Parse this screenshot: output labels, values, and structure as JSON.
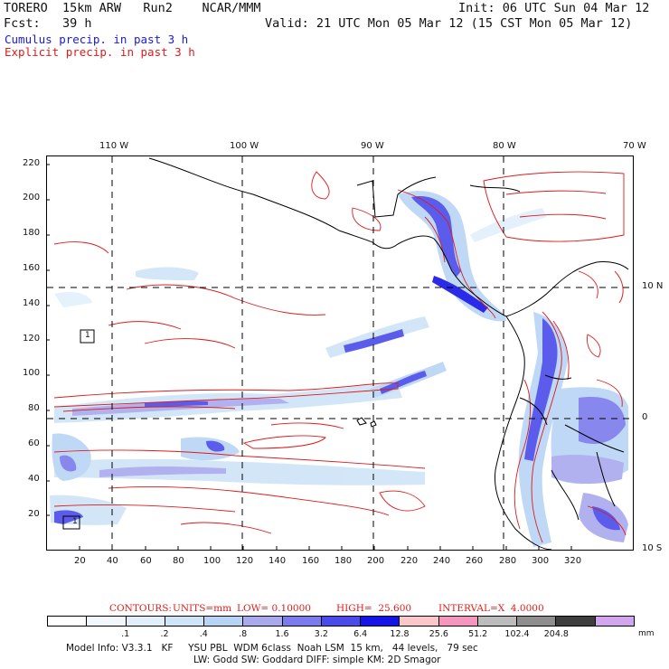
{
  "header": {
    "model": "TORERO  15km ARW   Run2    NCAR/MMM",
    "init": "Init: 06 UTC Sun 04 Mar 12",
    "fcst": "Fcst:   39 h",
    "valid": "Valid: 21 UTC Mon 05 Mar 12 (15 CST Mon 05 Mar 12)",
    "field1": "Cumulus precip. in past 3 h",
    "field2": "Explicit precip. in past 3 h"
  },
  "map": {
    "top_lon_labels": [
      "110 W",
      "100 W",
      "90 W",
      "80 W",
      "70 W"
    ],
    "right_lat_labels": [
      "10 N",
      "0",
      "10 S"
    ],
    "left_ticks": [
      "220",
      "200",
      "180",
      "160",
      "140",
      "120",
      "100",
      "80",
      "60",
      "40",
      "20"
    ],
    "bottom_ticks": [
      "20",
      "40",
      "60",
      "80",
      "100",
      "120",
      "140",
      "160",
      "180",
      "200",
      "220",
      "240",
      "260",
      "280",
      "300",
      "320"
    ],
    "box_labels": [
      "1",
      "1"
    ]
  },
  "contours_line": {
    "label": "CONTOURS:",
    "units": "UNITS=mm",
    "low": "LOW= 0.10000",
    "high": "HIGH=  25.600",
    "interval": "INTERVAL=X  4.0000"
  },
  "legend": {
    "colors": [
      "#ffffff",
      "#f2f7fd",
      "#e2effb",
      "#cfe4f7",
      "#b8d4f4",
      "#a9a9ee",
      "#7b7bed",
      "#4b4bea",
      "#1414e6",
      "#fac8c8",
      "#f596be",
      "#bcbcbc",
      "#8e8e8e",
      "#3e3e3e",
      "#d2a6ee"
    ],
    "values": [
      ".1",
      ".2",
      ".4",
      ".8",
      "1.6",
      "3.2",
      "6.4",
      "12.8",
      "25.6",
      "51.2",
      "102.4",
      "204.8"
    ],
    "unit": "mm"
  },
  "footer": {
    "line1": "Model Info: V3.3.1   KF     YSU PBL  WDM 6class  Noah LSM  15 km,   44 levels,   79 sec",
    "line2": "LW: Godd SW: Goddard DIFF: simple KM: 2D Smagor"
  }
}
